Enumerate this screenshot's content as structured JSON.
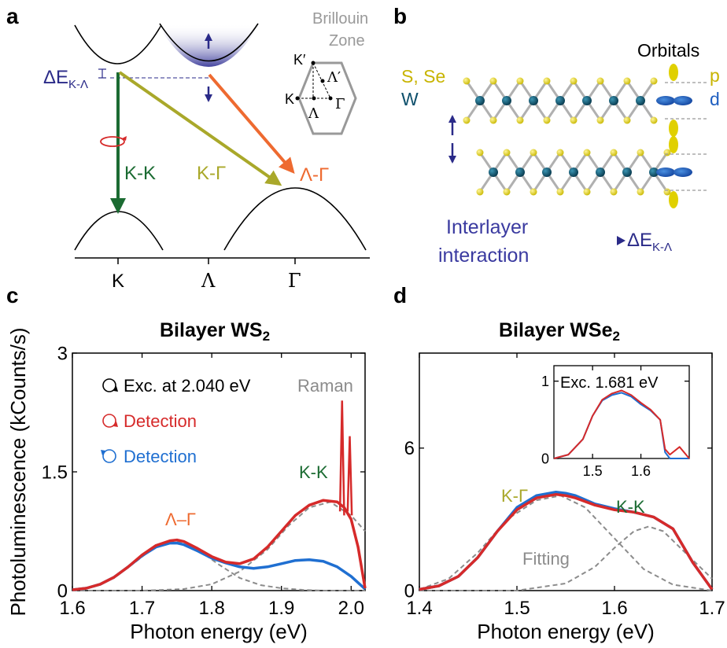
{
  "panel_labels": {
    "a": "a",
    "b": "b",
    "c": "c",
    "d": "d"
  },
  "colors": {
    "kk": "#1b6b32",
    "kg": "#a9a82a",
    "lg": "#ee6a30",
    "navy": "#2a2a88",
    "red": "#d62a2a",
    "blue": "#1f6fd1",
    "gray": "#8c8c8c",
    "sulfur": "#e0d000",
    "tungsten": "#0d4f6b"
  },
  "panel_a": {
    "delta_e_main": "ΔE",
    "delta_e_sub": "K-Λ",
    "kk_label": "K-K",
    "kg_label": "K-Γ",
    "lg_label": "Λ-Γ",
    "bz_title_1": "Brillouin",
    "bz_title_2": "Zone",
    "bz_kprime": "K′",
    "bz_lprime": "Λ′",
    "bz_k": "K",
    "bz_gamma": "Γ",
    "bz_lambda": "Λ",
    "axis_ticks": [
      "K",
      "Λ",
      "Γ"
    ]
  },
  "panel_b": {
    "chalcogen": "S, Se",
    "metal": "W",
    "orbitals": "Orbitals",
    "p": "p",
    "d": "d",
    "interlayer_1": "Interlayer",
    "interlayer_2": "interaction",
    "result_main": "ΔE",
    "result_sub": "K-Λ"
  },
  "chart_data": [
    {
      "type": "line",
      "panel": "c",
      "title_main": "Bilayer WS",
      "title_sub": "2",
      "xlabel": "Photon energy (eV)",
      "ylabel": "Photoluminescence (kCounts/s)",
      "xlim": [
        1.6,
        2.02
      ],
      "ylim": [
        0,
        3
      ],
      "xticks": [
        "1.6",
        "1.7",
        "1.8",
        "1.9",
        "2.0"
      ],
      "yticks": [
        "0",
        "1.5",
        "3"
      ],
      "legend": [
        "Exc. at 2.040 eV",
        "Detection",
        "Detection"
      ],
      "annotations": {
        "raman": "Raman",
        "lg": "Λ–Γ",
        "kk": "K-K"
      },
      "series": [
        {
          "name": "Detection",
          "color": "red",
          "x": [
            1.6,
            1.62,
            1.64,
            1.66,
            1.68,
            1.7,
            1.72,
            1.74,
            1.75,
            1.76,
            1.78,
            1.8,
            1.82,
            1.84,
            1.86,
            1.88,
            1.9,
            1.92,
            1.94,
            1.96,
            1.98,
            1.99,
            2.0,
            2.01,
            2.02
          ],
          "y": [
            0.01,
            0.03,
            0.08,
            0.17,
            0.3,
            0.45,
            0.57,
            0.63,
            0.64,
            0.62,
            0.53,
            0.43,
            0.36,
            0.34,
            0.4,
            0.55,
            0.75,
            0.95,
            1.08,
            1.14,
            1.12,
            1.05,
            0.9,
            0.55,
            0.03
          ]
        },
        {
          "name": "Detection",
          "color": "blue",
          "x": [
            1.6,
            1.62,
            1.64,
            1.66,
            1.68,
            1.7,
            1.72,
            1.74,
            1.75,
            1.76,
            1.78,
            1.8,
            1.82,
            1.84,
            1.86,
            1.88,
            1.9,
            1.92,
            1.94,
            1.96,
            1.98,
            2.0,
            2.01,
            2.02
          ],
          "y": [
            0.01,
            0.03,
            0.08,
            0.17,
            0.3,
            0.44,
            0.55,
            0.6,
            0.6,
            0.58,
            0.5,
            0.41,
            0.35,
            0.3,
            0.28,
            0.3,
            0.34,
            0.38,
            0.39,
            0.37,
            0.3,
            0.18,
            0.1,
            0.02
          ]
        },
        {
          "name": "Fitting",
          "color": "gray",
          "dashed": true,
          "x": [
            1.6,
            1.63,
            1.66,
            1.69,
            1.72,
            1.75,
            1.78,
            1.81,
            1.84,
            1.87,
            1.9,
            1.93,
            1.96,
            1.99,
            2.02
          ],
          "y": [
            0.01,
            0.05,
            0.16,
            0.36,
            0.56,
            0.62,
            0.52,
            0.33,
            0.16,
            0.07,
            0.03,
            0.01,
            0.0,
            0.0,
            0.0
          ]
        },
        {
          "name": "Fitting",
          "color": "gray",
          "dashed": true,
          "x": [
            1.6,
            1.7,
            1.76,
            1.8,
            1.84,
            1.88,
            1.91,
            1.94,
            1.97,
            2.0,
            2.02
          ],
          "y": [
            0.0,
            0.0,
            0.02,
            0.08,
            0.24,
            0.52,
            0.82,
            1.05,
            1.12,
            0.95,
            0.75
          ]
        }
      ],
      "raman_peaks": [
        {
          "x": 1.987,
          "y": 2.4
        },
        {
          "x": 1.998,
          "y": 1.95
        }
      ]
    },
    {
      "type": "line",
      "panel": "d",
      "title_main": "Bilayer WSe",
      "title_sub": "2",
      "xlabel": "Photon energy (eV)",
      "xlim": [
        1.4,
        1.7
      ],
      "ylim": [
        0,
        10
      ],
      "xticks": [
        "1.4",
        "1.5",
        "1.6",
        "1.7"
      ],
      "yticks": [
        "0",
        "6"
      ],
      "annotations": {
        "kg": "K-Γ",
        "kk": "K-K",
        "fitting": "Fitting"
      },
      "series": [
        {
          "name": "Detection",
          "color": "red",
          "x": [
            1.4,
            1.42,
            1.44,
            1.46,
            1.48,
            1.5,
            1.52,
            1.54,
            1.55,
            1.56,
            1.58,
            1.6,
            1.62,
            1.64,
            1.66,
            1.68,
            1.7
          ],
          "y": [
            0.05,
            0.2,
            0.6,
            1.4,
            2.5,
            3.4,
            3.9,
            4.05,
            4.0,
            3.9,
            3.6,
            3.4,
            3.3,
            3.1,
            2.6,
            1.2,
            0.05
          ]
        },
        {
          "name": "Detection",
          "color": "blue",
          "x": [
            1.4,
            1.42,
            1.44,
            1.46,
            1.48,
            1.5,
            1.52,
            1.54,
            1.55,
            1.56,
            1.58,
            1.6,
            1.62,
            1.64,
            1.66,
            1.68,
            1.7
          ],
          "y": [
            0.05,
            0.2,
            0.6,
            1.4,
            2.5,
            3.5,
            4.0,
            4.15,
            4.1,
            4.0,
            3.65,
            3.45,
            3.3,
            3.1,
            2.6,
            1.2,
            0.05
          ]
        },
        {
          "name": "Fitting",
          "color": "gray",
          "dashed": true,
          "x": [
            1.4,
            1.43,
            1.46,
            1.49,
            1.52,
            1.545,
            1.57,
            1.6,
            1.63,
            1.66,
            1.7
          ],
          "y": [
            0.05,
            0.5,
            1.6,
            3.0,
            3.8,
            4.0,
            3.5,
            2.2,
            0.9,
            0.25,
            0.0
          ]
        },
        {
          "name": "Fitting",
          "color": "gray",
          "dashed": true,
          "x": [
            1.4,
            1.5,
            1.55,
            1.58,
            1.6,
            1.62,
            1.635,
            1.65,
            1.67,
            1.7
          ],
          "y": [
            0.0,
            0.0,
            0.3,
            1.0,
            1.8,
            2.5,
            2.7,
            2.5,
            1.7,
            0.5
          ]
        }
      ],
      "inset": {
        "title": "Exc. 1.681 eV",
        "xlim": [
          1.42,
          1.7
        ],
        "ylim": [
          0,
          1.2
        ],
        "xticks": [
          "1.5",
          "1.6"
        ],
        "yticks": [
          "0",
          "1"
        ],
        "series": [
          {
            "name": "Detection",
            "color": "blue",
            "x": [
              1.42,
              1.45,
              1.48,
              1.5,
              1.52,
              1.54,
              1.56,
              1.58,
              1.6,
              1.62,
              1.64,
              1.65,
              1.66,
              1.7
            ],
            "y": [
              0.0,
              0.05,
              0.25,
              0.55,
              0.75,
              0.82,
              0.85,
              0.8,
              0.7,
              0.62,
              0.5,
              0.08,
              0.0,
              0.0
            ]
          },
          {
            "name": "Detection",
            "color": "red",
            "x": [
              1.42,
              1.45,
              1.48,
              1.5,
              1.52,
              1.54,
              1.56,
              1.58,
              1.6,
              1.62,
              1.64,
              1.65,
              1.66,
              1.68,
              1.7
            ],
            "y": [
              0.0,
              0.05,
              0.25,
              0.55,
              0.76,
              0.84,
              0.88,
              0.82,
              0.72,
              0.63,
              0.5,
              0.12,
              0.05,
              0.15,
              0.0
            ]
          }
        ]
      }
    }
  ]
}
